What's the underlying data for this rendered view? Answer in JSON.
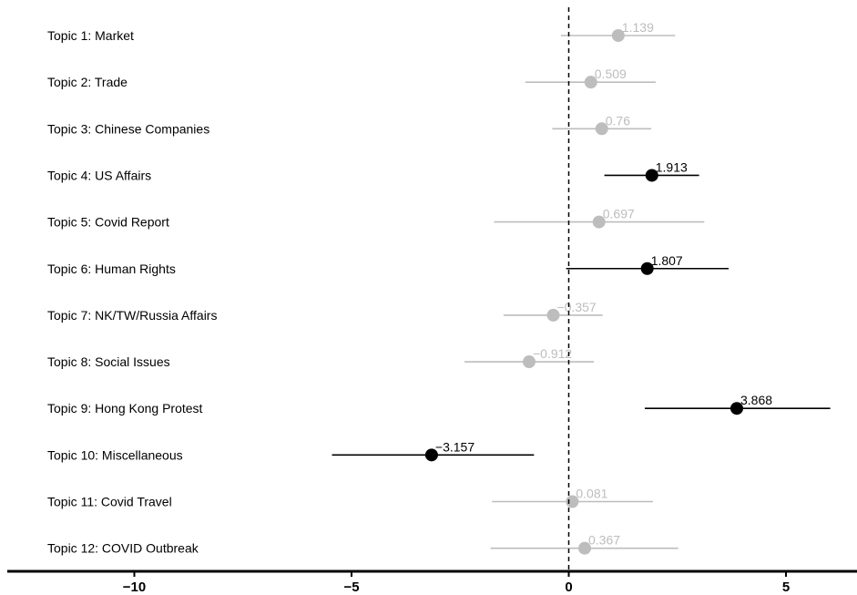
{
  "chart_data": {
    "type": "forest",
    "xlim": [
      -12.5,
      13.2
    ],
    "x_ticks": [
      -10,
      -5,
      0,
      5
    ],
    "x_tick_labels": [
      "−10",
      "−5",
      "0",
      "5"
    ],
    "reference_line": 0,
    "colors": {
      "significant": "#000000",
      "not_significant": "#bdbdbd"
    },
    "rows": [
      {
        "label": "Topic 1: Market",
        "estimate": 1.139,
        "value_label": "1.139",
        "ci": [
          -0.18,
          2.45
        ],
        "significant": false
      },
      {
        "label": "Topic 2: Trade",
        "estimate": 0.509,
        "value_label": "0.509",
        "ci": [
          -1.0,
          2.0
        ],
        "significant": false
      },
      {
        "label": "Topic 3: Chinese Companies",
        "estimate": 0.76,
        "value_label": "0.76",
        "ci": [
          -0.38,
          1.9
        ],
        "significant": false
      },
      {
        "label": "Topic 4: US Affairs",
        "estimate": 1.913,
        "value_label": "1.913",
        "ci": [
          0.82,
          3.0
        ],
        "significant": true
      },
      {
        "label": "Topic 5: Covid Report",
        "estimate": 0.697,
        "value_label": "0.697",
        "ci": [
          -1.72,
          3.12
        ],
        "significant": false
      },
      {
        "label": "Topic 6: Human Rights",
        "estimate": 1.807,
        "value_label": "1.807",
        "ci": [
          -0.06,
          3.68
        ],
        "significant": true
      },
      {
        "label": "Topic 7: NK/TW/Russia Affairs",
        "estimate": -0.357,
        "value_label": "−0.357",
        "ci": [
          -1.5,
          0.78
        ],
        "significant": false
      },
      {
        "label": "Topic 8: Social Issues",
        "estimate": -0.912,
        "value_label": "−0.912",
        "ci": [
          -2.4,
          0.58
        ],
        "significant": false
      },
      {
        "label": "Topic 9: Hong Kong Protest",
        "estimate": 3.868,
        "value_label": "3.868",
        "ci": [
          1.75,
          6.02
        ],
        "significant": true
      },
      {
        "label": "Topic 10: Miscellaneous",
        "estimate": -3.157,
        "value_label": "−3.157",
        "ci": [
          -5.45,
          -0.8
        ],
        "significant": true
      },
      {
        "label": "Topic 11: Covid Travel",
        "estimate": 0.081,
        "value_label": "0.081",
        "ci": [
          -1.77,
          1.94
        ],
        "significant": false
      },
      {
        "label": "Topic 12: COVID Outbreak",
        "estimate": 0.367,
        "value_label": "0.367",
        "ci": [
          -1.8,
          2.52
        ],
        "significant": false
      }
    ]
  }
}
